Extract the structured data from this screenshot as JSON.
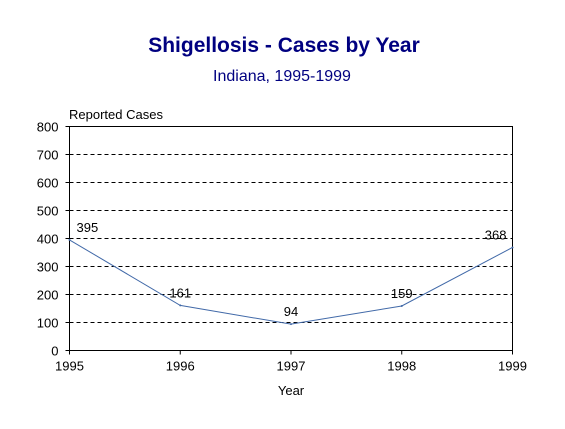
{
  "chart_data": {
    "type": "line",
    "title": "Shigellosis - Cases by Year",
    "subtitle": "Indiana, 1995-1999",
    "xlabel": "Year",
    "ylabel": "Reported Cases",
    "x": [
      "1995",
      "1996",
      "1997",
      "1998",
      "1999"
    ],
    "series": [
      {
        "values": [
          395,
          161,
          94,
          159,
          368
        ],
        "labels": [
          "395",
          "161",
          "94",
          "159",
          "368"
        ]
      }
    ],
    "ylim": [
      0,
      800
    ],
    "yticks": [
      "0",
      "100",
      "200",
      "300",
      "400",
      "500",
      "600",
      "700",
      "800"
    ],
    "grid": "horizontal-dashed",
    "colors": {
      "title": "#000080",
      "line": "#4169a8",
      "grid": "#000000"
    }
  }
}
